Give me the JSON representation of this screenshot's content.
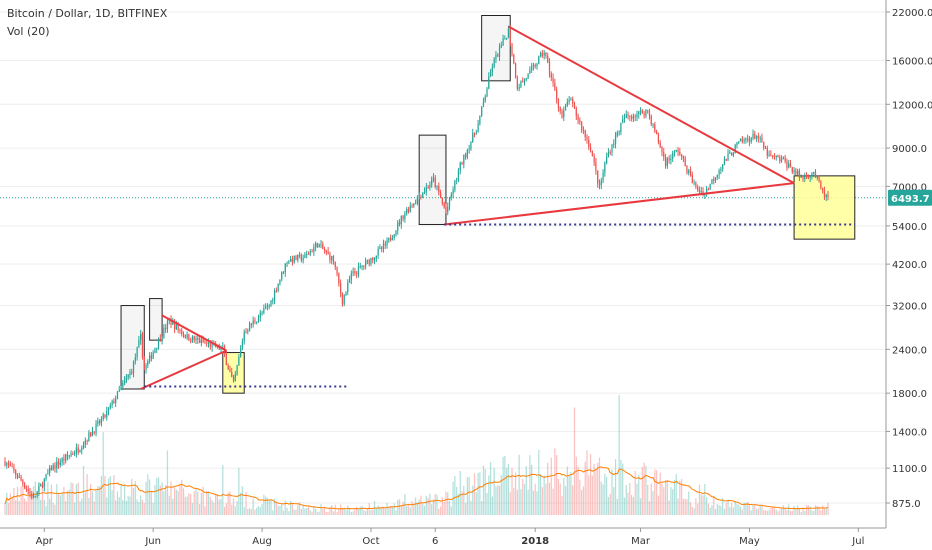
{
  "header": {
    "title": "Bitcoin / Dollar, 1D, BITFINEX",
    "volume_label": "Vol (20)"
  },
  "colors": {
    "up": "#26a69a",
    "down": "#ef5350",
    "trendline": "#e8393f",
    "ma": "#ff7f00",
    "price_line": "#26a69a",
    "support": "#3a3a8c",
    "box_fill": "#ffff99",
    "badge": "#26a69a",
    "grid": "#eeeeee"
  },
  "chart_data": {
    "type": "candlestick",
    "series_price": {
      "last_price": 6493.7,
      "price_badge": "6493.7",
      "y_ticks": [
        "22000.0",
        "16000.0",
        "12000.0",
        "9000.0",
        "7000.0",
        "5400.0",
        "4200.0",
        "3200.0",
        "2400.0",
        "1800.0",
        "1400.0",
        "1100.0",
        "875.0"
      ],
      "y_scale": "log"
    },
    "x_ticks": [
      "Apr",
      "Jun",
      "Aug",
      "Oct",
      "6",
      "2018",
      "Mar",
      "May",
      "Jul"
    ],
    "path_points": [
      [
        "2017-03-10",
        1150
      ],
      [
        "2017-03-20",
        1000
      ],
      [
        "2017-03-26",
        900
      ],
      [
        "2017-04-05",
        1100
      ],
      [
        "2017-04-20",
        1250
      ],
      [
        "2017-05-05",
        1550
      ],
      [
        "2017-05-20",
        2100
      ],
      [
        "2017-05-25",
        2600
      ],
      [
        "2017-05-27",
        2100
      ],
      [
        "2017-06-05",
        2600
      ],
      [
        "2017-06-10",
        2900
      ],
      [
        "2017-06-20",
        2600
      ],
      [
        "2017-06-30",
        2500
      ],
      [
        "2017-07-10",
        2400
      ],
      [
        "2017-07-16",
        1900
      ],
      [
        "2017-07-22",
        2700
      ],
      [
        "2017-08-05",
        3200
      ],
      [
        "2017-08-15",
        4300
      ],
      [
        "2017-08-25",
        4400
      ],
      [
        "2017-09-01",
        4800
      ],
      [
        "2017-09-10",
        4300
      ],
      [
        "2017-09-15",
        3300
      ],
      [
        "2017-09-20",
        3900
      ],
      [
        "2017-09-30",
        4300
      ],
      [
        "2017-10-10",
        4800
      ],
      [
        "2017-10-20",
        5900
      ],
      [
        "2017-11-05",
        7300
      ],
      [
        "2017-11-12",
        5900
      ],
      [
        "2017-11-20",
        8000
      ],
      [
        "2017-11-30",
        10500
      ],
      [
        "2017-12-08",
        15500
      ],
      [
        "2017-12-17",
        19500
      ],
      [
        "2017-12-22",
        13500
      ],
      [
        "2017-12-28",
        14500
      ],
      [
        "2018-01-06",
        17000
      ],
      [
        "2018-01-16",
        11000
      ],
      [
        "2018-01-20",
        12500
      ],
      [
        "2018-02-01",
        9000
      ],
      [
        "2018-02-06",
        6900
      ],
      [
        "2018-02-10",
        8500
      ],
      [
        "2018-02-20",
        11000
      ],
      [
        "2018-03-05",
        11500
      ],
      [
        "2018-03-15",
        8200
      ],
      [
        "2018-03-22",
        8900
      ],
      [
        "2018-04-01",
        6900
      ],
      [
        "2018-04-06",
        6700
      ],
      [
        "2018-04-15",
        8000
      ],
      [
        "2018-04-25",
        9300
      ],
      [
        "2018-05-05",
        9800
      ],
      [
        "2018-05-12",
        8500
      ],
      [
        "2018-05-20",
        8300
      ],
      [
        "2018-05-30",
        7400
      ],
      [
        "2018-06-06",
        7700
      ],
      [
        "2018-06-11",
        6700
      ],
      [
        "2018-06-14",
        6450
      ]
    ],
    "drawings": {
      "trendlines": [
        [
          [
            "2017-05-25",
            1850
          ],
          [
            "2017-07-12",
            2380
          ]
        ],
        [
          [
            "2017-06-06",
            3000
          ],
          [
            "2017-07-12",
            2380
          ]
        ],
        [
          [
            "2017-11-11",
            5450
          ],
          [
            "2018-05-26",
            7150
          ]
        ],
        [
          [
            "2017-12-17",
            20000
          ],
          [
            "2018-05-26",
            7150
          ]
        ]
      ],
      "support_lines": [
        [
          [
            "2017-05-27",
            1880
          ],
          [
            "2017-09-18",
            1880
          ]
        ],
        [
          [
            "2017-11-11",
            5450
          ],
          [
            "2018-06-29",
            5450
          ]
        ]
      ],
      "highlight_boxes": [
        {
          "from": "2017-05-14",
          "to": "2017-05-27",
          "lo": 1850,
          "hi": 3200,
          "fill": false
        },
        {
          "from": "2017-05-30",
          "to": "2017-06-06",
          "lo": 2550,
          "hi": 3350,
          "fill": false
        },
        {
          "from": "2017-07-10",
          "to": "2017-07-22",
          "lo": 1800,
          "hi": 2350,
          "fill": true
        },
        {
          "from": "2017-10-28",
          "to": "2017-11-12",
          "lo": 5450,
          "hi": 9800,
          "fill": false
        },
        {
          "from": "2017-12-02",
          "to": "2017-12-18",
          "lo": 14000,
          "hi": 21500,
          "fill": false
        },
        {
          "from": "2018-05-26",
          "to": "2018-06-29",
          "lo": 4950,
          "hi": 7500,
          "fill": true
        }
      ]
    },
    "volume_ma_level": 0.4
  }
}
